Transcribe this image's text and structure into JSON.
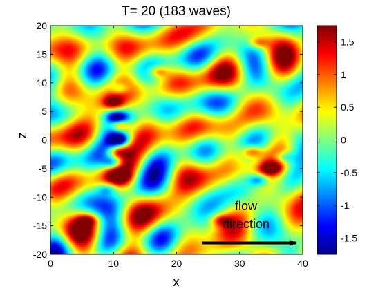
{
  "chart_data": {
    "type": "heatmap",
    "title": "T= 20   (183 waves)",
    "xlabel": "x",
    "ylabel": "z",
    "xlim": [
      0,
      40
    ],
    "ylim": [
      -20,
      20
    ],
    "xticks": [
      0,
      10,
      20,
      30,
      40
    ],
    "yticks": [
      -20,
      -15,
      -10,
      -5,
      0,
      5,
      10,
      15,
      20
    ],
    "colorbar": {
      "range": [
        -1.75,
        1.75
      ],
      "ticks": [
        -1.5,
        -1,
        -0.5,
        0,
        0.5,
        1,
        1.5
      ],
      "colormap": "jet"
    },
    "features": [
      {
        "x": 11,
        "z": 2.5,
        "value": 1.7
      },
      {
        "x": 11,
        "z": 0,
        "value": -1.7
      },
      {
        "x": 10.5,
        "z": -2,
        "value": 1.1
      },
      {
        "x": 10.5,
        "z": 4,
        "value": -1.3
      },
      {
        "x": 10,
        "z": 6.5,
        "value": 1.4
      },
      {
        "x": 11,
        "z": 9,
        "value": -1.0
      },
      {
        "x": 10,
        "z": -4,
        "value": -1.4
      },
      {
        "x": 11,
        "z": -6.5,
        "value": 1.2
      },
      {
        "x": 9,
        "z": -8.5,
        "value": -1.0
      },
      {
        "x": 32,
        "z": -2,
        "value": 1.3
      },
      {
        "x": 35,
        "z": -5,
        "value": 1.5
      },
      {
        "x": 33,
        "z": -7,
        "value": -1.2
      },
      {
        "x": 37,
        "z": -3,
        "value": -1.0
      },
      {
        "x": 17,
        "z": 12,
        "value": 1.2
      },
      {
        "x": 33,
        "z": 17,
        "value": 1.0
      },
      {
        "x": 6,
        "z": -14,
        "value": 1.0
      },
      {
        "x": 27,
        "z": -14,
        "value": 1.0
      }
    ],
    "annotation": {
      "text_lines": [
        "flow",
        "direction"
      ],
      "arrow_from": {
        "x": 24,
        "z": -18
      },
      "arrow_to": {
        "x": 39,
        "z": -18
      }
    }
  }
}
